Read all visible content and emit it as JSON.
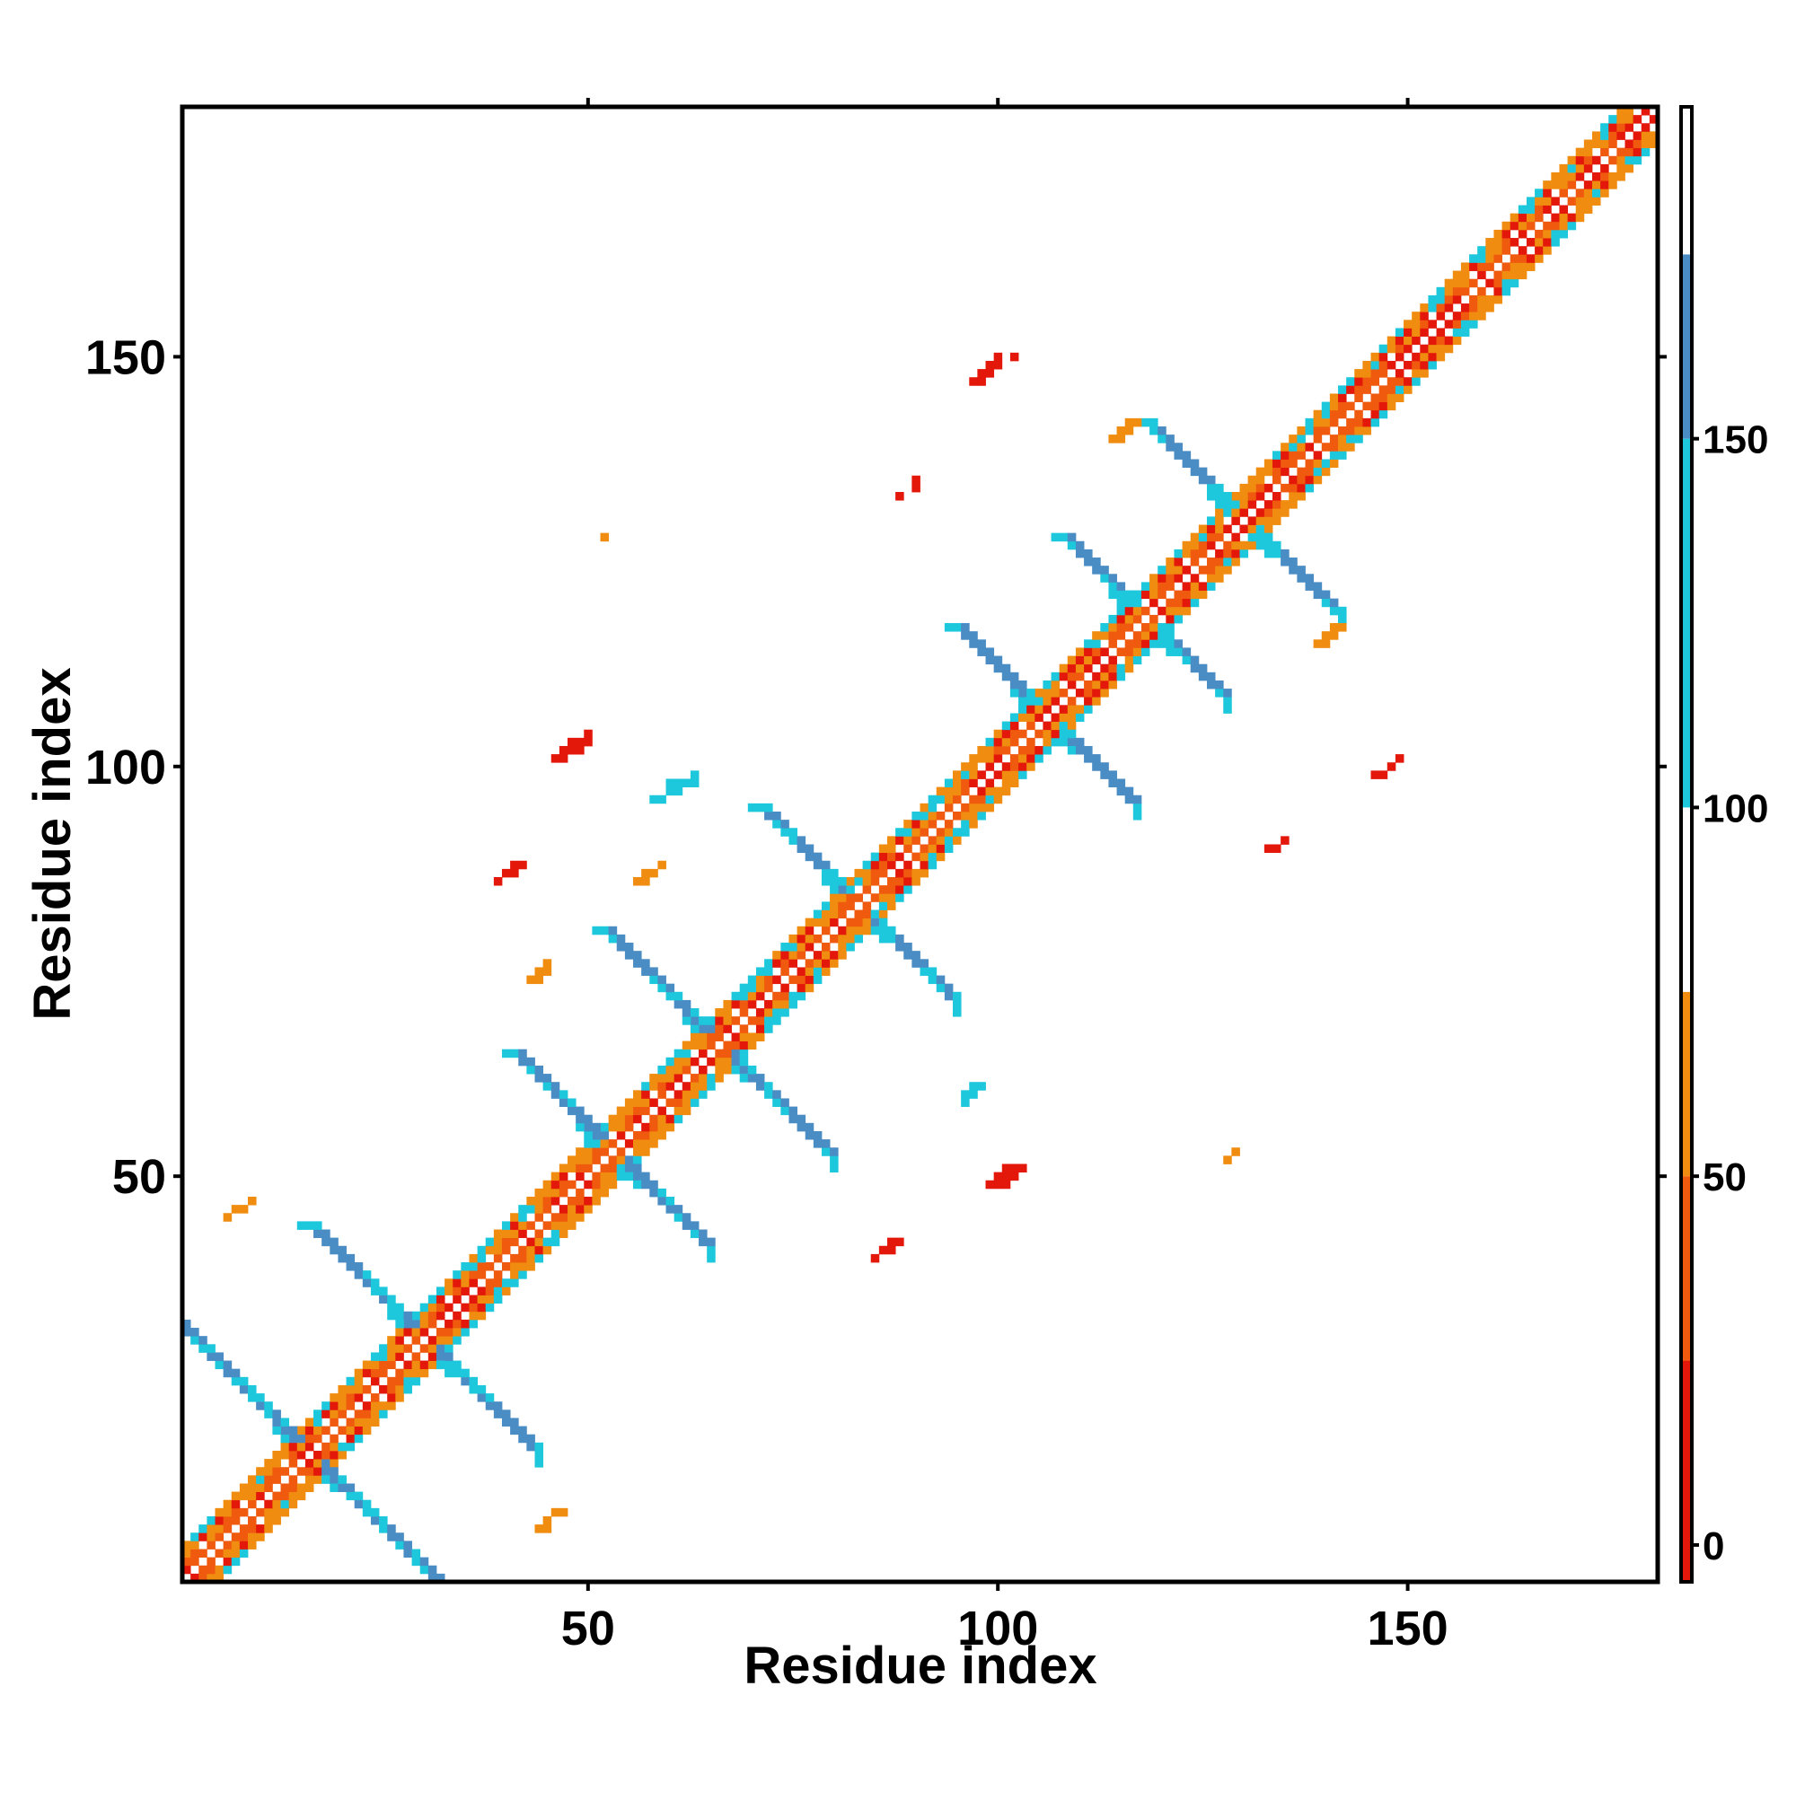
{
  "chart_data": {
    "type": "heatmap",
    "title": "",
    "xlabel": "Residue index",
    "ylabel": "Residue index",
    "xlim": [
      1,
      180
    ],
    "ylim": [
      1,
      180
    ],
    "xticks": [
      "50",
      "100",
      "150"
    ],
    "yticks": [
      "50",
      "100",
      "150"
    ],
    "colorbar": {
      "ticks": [
        "0",
        "50",
        "100",
        "150"
      ],
      "range": [
        -5,
        195
      ],
      "bands": [
        {
          "from": -5,
          "to": 25,
          "color": "#e3170a"
        },
        {
          "from": 25,
          "to": 50,
          "color": "#f05a0f"
        },
        {
          "from": 50,
          "to": 75,
          "color": "#f08c0f"
        },
        {
          "from": 75,
          "to": 100,
          "color": "#ffffff"
        },
        {
          "from": 100,
          "to": 150,
          "color": "#1ec8dc"
        },
        {
          "from": 150,
          "to": 175,
          "color": "#4a8cc4"
        },
        {
          "from": 175,
          "to": 195,
          "color": "#ffffff"
        }
      ]
    },
    "colors": {
      "red": "#e3170a",
      "red_orange": "#f05a0f",
      "orange": "#f08c0f",
      "cyan": "#1ec8dc",
      "steel_blue": "#4a8cc4",
      "background": "#ffffff"
    },
    "features": {
      "diagonal": {
        "from": 1,
        "to": 180,
        "colors": [
          "red",
          "red_orange",
          "orange",
          "cyan"
        ]
      },
      "antiparallel_strand_pairs": [
        {
          "center": [
            16,
            16
          ],
          "length": 16,
          "color": "steel_blue"
        },
        {
          "center": [
            30,
            30
          ],
          "length": 14,
          "color": "steel_blue"
        },
        {
          "center": [
            53,
            53
          ],
          "length": 12,
          "color": "steel_blue"
        },
        {
          "center": [
            66,
            66
          ],
          "length": 14,
          "color": "steel_blue"
        },
        {
          "center": [
            83,
            83
          ],
          "length": 12,
          "color": "steel_blue"
        },
        {
          "center": [
            106,
            106
          ],
          "length": 11,
          "color": "steel_blue"
        },
        {
          "center": [
            118,
            118
          ],
          "length": 10,
          "color": "steel_blue"
        },
        {
          "center": [
            130,
            130
          ],
          "length": 12,
          "color": "steel_blue"
        }
      ],
      "off_diagonal_contacts": [
        {
          "x": 48,
          "y": 101,
          "size": 3,
          "color": "red"
        },
        {
          "x": 40,
          "y": 86,
          "size": 2,
          "color": "red"
        },
        {
          "x": 44,
          "y": 74,
          "size": 2,
          "color": "orange"
        },
        {
          "x": 62,
          "y": 97,
          "size": 2,
          "color": "cyan"
        },
        {
          "x": 57,
          "y": 86,
          "size": 2,
          "color": "orange"
        },
        {
          "x": 100,
          "y": 48,
          "size": 3,
          "color": "red"
        },
        {
          "x": 86,
          "y": 40,
          "size": 2,
          "color": "red"
        },
        {
          "x": 99,
          "y": 147,
          "size": 3,
          "color": "red"
        },
        {
          "x": 89,
          "y": 133,
          "size": 2,
          "color": "red"
        },
        {
          "x": 115,
          "y": 140,
          "size": 2,
          "color": "orange"
        },
        {
          "x": 147,
          "y": 99,
          "size": 2,
          "color": "red"
        },
        {
          "x": 133,
          "y": 89,
          "size": 2,
          "color": "red"
        },
        {
          "x": 140,
          "y": 115,
          "size": 2,
          "color": "orange"
        },
        {
          "x": 7,
          "y": 45,
          "size": 2,
          "color": "orange"
        },
        {
          "x": 45,
          "y": 7,
          "size": 2,
          "color": "orange"
        },
        {
          "x": 96,
          "y": 59,
          "size": 2,
          "color": "cyan"
        },
        {
          "x": 59,
          "y": 96,
          "size": 2,
          "color": "cyan"
        },
        {
          "x": 128,
          "y": 52,
          "size": 1,
          "color": "orange"
        },
        {
          "x": 52,
          "y": 128,
          "size": 1,
          "color": "orange"
        }
      ]
    }
  }
}
